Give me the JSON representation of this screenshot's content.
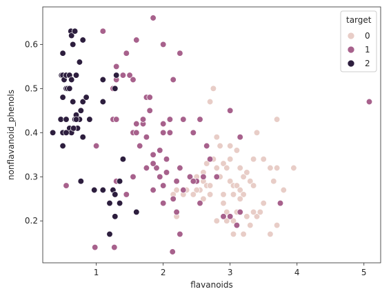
{
  "chart_data": {
    "type": "scatter",
    "title": "",
    "xlabel": "flavanoids",
    "ylabel": "nonflavanoid_phenols",
    "xlim": [
      0.2,
      5.25
    ],
    "ylim": [
      0.105,
      0.685
    ],
    "xticks": [
      1,
      2,
      3,
      4,
      5
    ],
    "yticks": [
      0.2,
      0.3,
      0.4,
      0.5,
      0.6
    ],
    "grid": false,
    "legend": {
      "title": "target",
      "placement": "top-right"
    },
    "series": [
      {
        "name": "0",
        "color": "#e8cdc7",
        "points": [
          [
            2.4,
            0.3
          ],
          [
            2.5,
            0.29
          ],
          [
            2.5,
            0.3
          ],
          [
            2.55,
            0.27
          ],
          [
            2.6,
            0.29
          ],
          [
            2.6,
            0.31
          ],
          [
            2.65,
            0.28
          ],
          [
            2.7,
            0.28
          ],
          [
            2.7,
            0.47
          ],
          [
            2.75,
            0.5
          ],
          [
            2.8,
            0.39
          ],
          [
            2.8,
            0.32
          ],
          [
            2.85,
            0.37
          ],
          [
            2.9,
            0.33
          ],
          [
            2.95,
            0.32
          ],
          [
            3.0,
            0.29
          ],
          [
            3.0,
            0.34
          ],
          [
            3.0,
            0.37
          ],
          [
            3.05,
            0.26
          ],
          [
            3.05,
            0.28
          ],
          [
            3.1,
            0.28
          ],
          [
            3.15,
            0.32
          ],
          [
            3.2,
            0.3
          ],
          [
            3.25,
            0.31
          ],
          [
            3.3,
            0.29
          ],
          [
            3.35,
            0.34
          ],
          [
            3.4,
            0.4
          ],
          [
            3.4,
            0.21
          ],
          [
            3.5,
            0.24
          ],
          [
            3.6,
            0.32
          ],
          [
            3.65,
            0.29
          ],
          [
            3.7,
            0.32
          ],
          [
            3.8,
            0.27
          ],
          [
            3.95,
            0.32
          ],
          [
            2.6,
            0.25
          ],
          [
            2.7,
            0.26
          ],
          [
            2.8,
            0.2
          ],
          [
            2.9,
            0.24
          ],
          [
            2.95,
            0.22
          ],
          [
            3.0,
            0.21
          ],
          [
            3.05,
            0.2
          ],
          [
            3.1,
            0.22
          ],
          [
            3.15,
            0.27
          ],
          [
            3.2,
            0.26
          ],
          [
            3.25,
            0.21
          ],
          [
            3.3,
            0.19
          ],
          [
            3.35,
            0.22
          ],
          [
            3.45,
            0.22
          ],
          [
            3.6,
            0.17
          ],
          [
            3.7,
            0.19
          ],
          [
            3.2,
            0.17
          ],
          [
            3.05,
            0.17
          ],
          [
            2.95,
            0.2
          ],
          [
            3.7,
            0.43
          ],
          [
            3.5,
            0.34
          ],
          [
            2.65,
            0.33
          ],
          [
            2.75,
            0.34
          ],
          [
            2.85,
            0.3
          ],
          [
            3.1,
            0.36
          ],
          [
            2.5,
            0.27
          ],
          [
            2.45,
            0.26
          ],
          [
            2.3,
            0.26
          ],
          [
            2.2,
            0.27
          ],
          [
            2.15,
            0.26
          ],
          [
            2.2,
            0.21
          ],
          [
            2.35,
            0.27
          ],
          [
            3.35,
            0.28
          ],
          [
            3.15,
            0.25
          ],
          [
            2.9,
            0.26
          ]
        ]
      },
      {
        "name": "1",
        "color": "#a7618c",
        "points": [
          [
            1.1,
            0.63
          ],
          [
            1.25,
            0.5
          ],
          [
            1.3,
            0.55
          ],
          [
            1.3,
            0.52
          ],
          [
            1.45,
            0.58
          ],
          [
            1.5,
            0.53
          ],
          [
            1.55,
            0.52
          ],
          [
            1.6,
            0.61
          ],
          [
            1.7,
            0.42
          ],
          [
            1.75,
            0.48
          ],
          [
            1.8,
            0.48
          ],
          [
            1.8,
            0.45
          ],
          [
            1.85,
            0.66
          ],
          [
            2.0,
            0.6
          ],
          [
            2.0,
            0.4
          ],
          [
            2.1,
            0.43
          ],
          [
            2.15,
            0.52
          ],
          [
            2.25,
            0.58
          ],
          [
            2.3,
            0.43
          ],
          [
            2.45,
            0.4
          ],
          [
            2.55,
            0.43
          ],
          [
            2.65,
            0.37
          ],
          [
            3.0,
            0.45
          ],
          [
            3.15,
            0.39
          ],
          [
            5.08,
            0.47
          ],
          [
            0.55,
            0.28
          ],
          [
            1.0,
            0.37
          ],
          [
            1.25,
            0.43
          ],
          [
            1.3,
            0.43
          ],
          [
            1.55,
            0.4
          ],
          [
            1.6,
            0.4
          ],
          [
            1.6,
            0.42
          ],
          [
            1.65,
            0.37
          ],
          [
            1.7,
            0.43
          ],
          [
            1.75,
            0.39
          ],
          [
            1.85,
            0.35
          ],
          [
            1.9,
            0.32
          ],
          [
            1.95,
            0.3
          ],
          [
            2.0,
            0.42
          ],
          [
            2.05,
            0.34
          ],
          [
            2.1,
            0.4
          ],
          [
            2.2,
            0.29
          ],
          [
            2.25,
            0.32
          ],
          [
            2.3,
            0.27
          ],
          [
            2.4,
            0.3
          ],
          [
            2.5,
            0.29
          ],
          [
            2.6,
            0.3
          ],
          [
            2.7,
            0.34
          ],
          [
            2.8,
            0.3
          ],
          [
            1.3,
            0.29
          ],
          [
            1.45,
            0.26
          ],
          [
            1.55,
            0.3
          ],
          [
            1.6,
            0.22
          ],
          [
            1.75,
            0.32
          ],
          [
            1.85,
            0.27
          ],
          [
            2.0,
            0.28
          ],
          [
            2.0,
            0.24
          ],
          [
            2.05,
            0.34
          ],
          [
            2.15,
            0.25
          ],
          [
            2.2,
            0.22
          ],
          [
            2.25,
            0.17
          ],
          [
            2.45,
            0.29
          ],
          [
            2.55,
            0.24
          ],
          [
            2.9,
            0.21
          ],
          [
            3.0,
            0.21
          ],
          [
            3.1,
            0.19
          ],
          [
            3.15,
            0.22
          ],
          [
            3.75,
            0.24
          ],
          [
            0.98,
            0.14
          ],
          [
            1.27,
            0.14
          ],
          [
            2.14,
            0.13
          ],
          [
            1.4,
            0.53
          ],
          [
            1.95,
            0.36
          ],
          [
            2.05,
            0.31
          ],
          [
            1.85,
            0.33
          ]
        ]
      },
      {
        "name": "2",
        "color": "#2d1e3e",
        "points": [
          [
            0.48,
            0.53
          ],
          [
            0.5,
            0.53
          ],
          [
            0.52,
            0.52
          ],
          [
            0.55,
            0.53
          ],
          [
            0.6,
            0.53
          ],
          [
            0.62,
            0.63
          ],
          [
            0.63,
            0.62
          ],
          [
            0.65,
            0.6
          ],
          [
            0.68,
            0.63
          ],
          [
            0.7,
            0.53
          ],
          [
            0.75,
            0.56
          ],
          [
            0.8,
            0.61
          ],
          [
            0.5,
            0.58
          ],
          [
            0.55,
            0.5
          ],
          [
            0.57,
            0.5
          ],
          [
            0.6,
            0.5
          ],
          [
            0.63,
            0.52
          ],
          [
            0.65,
            0.47
          ],
          [
            0.68,
            0.43
          ],
          [
            0.7,
            0.44
          ],
          [
            0.72,
            0.41
          ],
          [
            0.75,
            0.43
          ],
          [
            0.77,
            0.45
          ],
          [
            0.8,
            0.47
          ],
          [
            0.85,
            0.48
          ],
          [
            0.47,
            0.43
          ],
          [
            0.5,
            0.48
          ],
          [
            0.55,
            0.43
          ],
          [
            0.6,
            0.41
          ],
          [
            0.63,
            0.4
          ],
          [
            0.66,
            0.41
          ],
          [
            0.7,
            0.43
          ],
          [
            0.35,
            0.4
          ],
          [
            0.5,
            0.4
          ],
          [
            0.55,
            0.4
          ],
          [
            0.8,
            0.39
          ],
          [
            0.9,
            0.43
          ],
          [
            0.5,
            0.37
          ],
          [
            1.1,
            0.52
          ],
          [
            1.1,
            0.47
          ],
          [
            1.3,
            0.53
          ],
          [
            1.28,
            0.5
          ],
          [
            1.4,
            0.34
          ],
          [
            1.35,
            0.29
          ],
          [
            0.77,
            0.29
          ],
          [
            0.97,
            0.27
          ],
          [
            1.1,
            0.27
          ],
          [
            1.25,
            0.27
          ],
          [
            1.2,
            0.24
          ],
          [
            1.28,
            0.26
          ],
          [
            1.35,
            0.24
          ],
          [
            1.28,
            0.21
          ],
          [
            1.6,
            0.22
          ],
          [
            1.2,
            0.17
          ]
        ]
      }
    ]
  }
}
